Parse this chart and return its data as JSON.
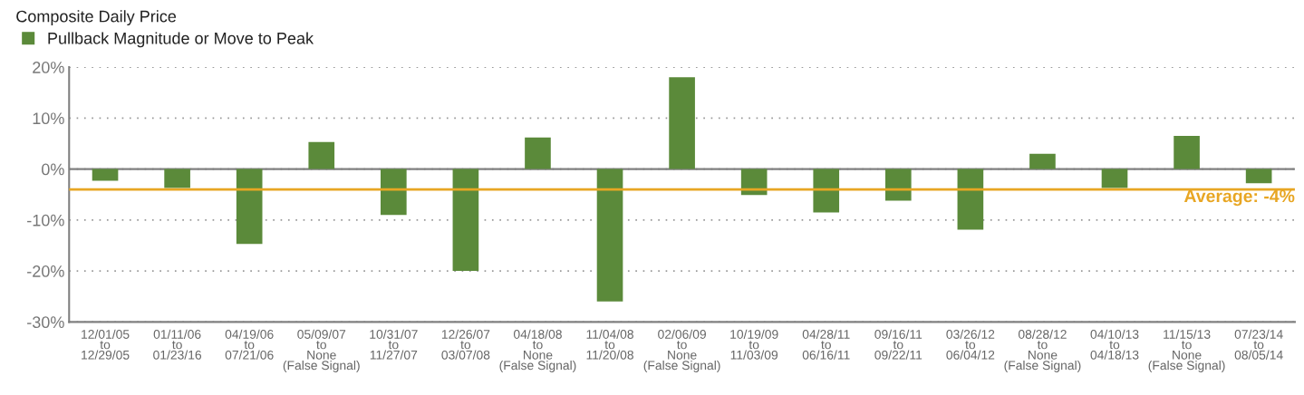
{
  "chart_data": {
    "type": "bar",
    "title": "Composite Daily Price",
    "categories": [
      "12/01/05\nto\n12/29/05",
      "01/11/06\nto\n01/23/16",
      "04/19/06\nto\n07/21/06",
      "05/09/07\nto\nNone\n(False Signal)",
      "10/31/07\nto\n11/27/07",
      "12/26/07\nto\n03/07/08",
      "04/18/08\nto\nNone\n(False Signal)",
      "11/04/08\nto\n11/20/08",
      "02/06/09\nto\nNone\n(False Signal)",
      "10/19/09\nto\n11/03/09",
      "04/28/11\nto\n06/16/11",
      "09/16/11\nto\n09/22/11",
      "03/26/12\nto\n06/04/12",
      "08/28/12\nto\nNone\n(False Signal)",
      "04/10/13\nto\n04/18/13",
      "11/15/13\nto\nNone\n(False Signal)",
      "07/23/14\nto\n08/05/14"
    ],
    "series": [
      {
        "name": "Pullback Magnitude or Move to Peak",
        "color": "#5b8a3a",
        "values": [
          -2.3,
          -3.7,
          -14.7,
          5.3,
          -9.0,
          -20,
          6.2,
          -26,
          18,
          -5.1,
          -8.5,
          -6.2,
          -11.9,
          3.0,
          -3.7,
          6.5,
          -2.8
        ]
      }
    ],
    "ylim": [
      -30,
      20
    ],
    "yticks": [
      {
        "value": -30,
        "label": "-30%"
      },
      {
        "value": -20,
        "label": "-20%"
      },
      {
        "value": -10,
        "label": "-10%"
      },
      {
        "value": 0,
        "label": "0%"
      },
      {
        "value": 10,
        "label": "10%"
      },
      {
        "value": 20,
        "label": "20%"
      }
    ],
    "ref_lines": [
      {
        "axis": "y",
        "value": -4,
        "label": "Average: -4%",
        "color": "#e8a623"
      }
    ],
    "grid": "y",
    "legend": "top left"
  }
}
